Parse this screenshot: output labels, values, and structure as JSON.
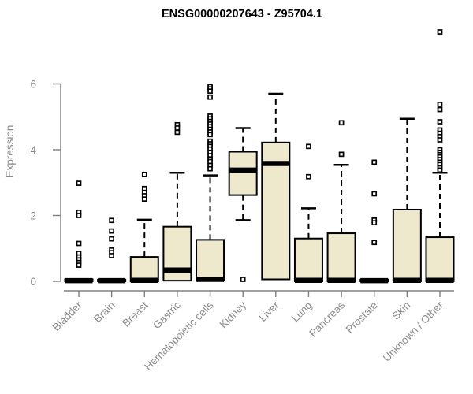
{
  "page": {
    "background_color": "#FFFFFF"
  },
  "chart_data": {
    "type": "boxplot",
    "title": "ENSG00000207643 - Z95704.1",
    "ylabel": "Expression",
    "xlabel": "",
    "ylim": [
      0,
      6
    ],
    "yticks": [
      "0",
      "2",
      "4",
      "6"
    ],
    "grid": false,
    "legend": false,
    "x_label_rotation_deg": 45,
    "colors": {
      "box_fill": "#EEE8CD",
      "box_stroke": "#000000",
      "median": "#000000",
      "whisker": "#000000",
      "outlier_stroke": "#000000",
      "outlier_fill": "#FFFFFF",
      "axis_line": "#808080",
      "axis_text": "#8B8B8B",
      "title_text": "#000000"
    },
    "categories": [
      "Bladder",
      "Brain",
      "Breast",
      "Gastric",
      "Hematopoietic cells",
      "Kidney",
      "Liver",
      "Lung",
      "Pancreas",
      "Prostate",
      "Skin",
      "Unknown / Other"
    ],
    "series": [
      {
        "name": "Bladder",
        "q1": 0,
        "median": 0.02,
        "q3": 0.06,
        "whisker_low": 0,
        "whisker_high": 0.06,
        "outliers": [
          2.98,
          2.1,
          2.0,
          1.15,
          0.85,
          0.74,
          0.65,
          0.57,
          0.49
        ]
      },
      {
        "name": "Brain",
        "q1": 0,
        "median": 0.02,
        "q3": 0.05,
        "whisker_low": 0,
        "whisker_high": 0.05,
        "outliers": [
          1.85,
          1.53,
          1.29,
          0.95,
          0.87,
          0.78
        ]
      },
      {
        "name": "Breast",
        "q1": 0,
        "median": 0.03,
        "q3": 0.74,
        "whisker_low": 0,
        "whisker_high": 1.87,
        "outliers": [
          3.25,
          2.82,
          2.7,
          2.6,
          2.5
        ]
      },
      {
        "name": "Gastric",
        "q1": 0.02,
        "median": 0.34,
        "q3": 1.66,
        "whisker_low": 0,
        "whisker_high": 3.3,
        "outliers": [
          4.76,
          4.66,
          4.53
        ]
      },
      {
        "name": "Hematopoietic cells",
        "q1": 0.02,
        "median": 0.06,
        "q3": 1.26,
        "whisker_low": 0,
        "whisker_high": 3.22,
        "outliers": [
          5.92,
          5.85,
          5.78,
          5.6,
          5.02,
          4.94,
          4.86,
          4.78,
          4.7,
          4.62,
          4.54,
          4.46,
          4.26,
          4.18,
          4.1,
          4.02,
          3.92,
          3.82,
          3.72,
          3.64,
          3.52,
          3.42
        ]
      },
      {
        "name": "Kidney",
        "q1": 2.62,
        "median": 3.38,
        "q3": 3.94,
        "whisker_low": 1.86,
        "whisker_high": 4.66,
        "outliers": [
          0.06
        ]
      },
      {
        "name": "Liver",
        "q1": 0.06,
        "median": 3.58,
        "q3": 4.22,
        "whisker_low": 0.06,
        "whisker_high": 5.7,
        "outliers": []
      },
      {
        "name": "Lung",
        "q1": 0,
        "median": 0.03,
        "q3": 1.3,
        "whisker_low": 0,
        "whisker_high": 2.22,
        "outliers": [
          4.1,
          3.18
        ]
      },
      {
        "name": "Pancreas",
        "q1": 0,
        "median": 0.03,
        "q3": 1.46,
        "whisker_low": 0,
        "whisker_high": 3.54,
        "outliers": [
          4.82,
          3.86
        ]
      },
      {
        "name": "Prostate",
        "q1": 0,
        "median": 0.02,
        "q3": 0.05,
        "whisker_low": 0,
        "whisker_high": 0.05,
        "outliers": [
          3.62,
          2.66,
          1.86,
          1.78,
          1.18
        ]
      },
      {
        "name": "Skin",
        "q1": 0,
        "median": 0.03,
        "q3": 2.18,
        "whisker_low": 0,
        "whisker_high": 4.94,
        "outliers": []
      },
      {
        "name": "Unknown / Other",
        "q1": 0,
        "median": 0.03,
        "q3": 1.34,
        "whisker_low": 0,
        "whisker_high": 3.3,
        "outliers": [
          7.58,
          5.38,
          5.22,
          4.85,
          4.6,
          4.5,
          4.4,
          4.3,
          4.0,
          3.92,
          3.85,
          3.78,
          3.7,
          3.62,
          3.55,
          3.45,
          3.38
        ]
      }
    ]
  }
}
